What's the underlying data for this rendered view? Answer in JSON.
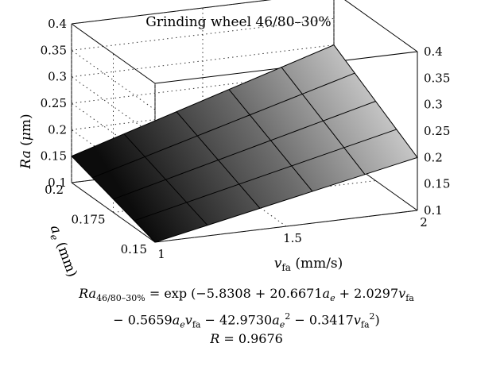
{
  "chart_data": {
    "type": "surface",
    "title": "Grinding wheel 46/80–30%",
    "x": {
      "label": "v fa (mm/s)",
      "range": [
        1,
        2
      ],
      "ticks": [
        "1",
        "1.5",
        "2"
      ]
    },
    "y": {
      "label": "ae (mm)",
      "range": [
        0.15,
        0.2
      ],
      "ticks": [
        "0.15",
        "0.175",
        "0.2"
      ]
    },
    "z": {
      "label": "Ra (μm)",
      "range": [
        0.1,
        0.4
      ],
      "ticks_left": [
        "0.1",
        "0.15",
        "0.2",
        "0.25",
        "0.3",
        "0.35",
        "0.4"
      ],
      "ticks_right": [
        "0.1",
        "0.15",
        "0.2",
        "0.25",
        "0.3",
        "0.35",
        "0.4"
      ]
    },
    "surface_corners": [
      {
        "vfa": 1,
        "ae": 0.15,
        "Ra": 0.1
      },
      {
        "vfa": 2,
        "ae": 0.15,
        "Ra": 0.2
      },
      {
        "vfa": 1,
        "ae": 0.2,
        "Ra": 0.15
      },
      {
        "vfa": 2,
        "ae": 0.2,
        "Ra": 0.3
      }
    ],
    "model": {
      "line1": "Ra46/80–30% = exp (−5.8308 + 20.6671ae + 2.0297vfa",
      "line2": "− 0.5659aevfa − 42.9730ae² − 0.3417vfa²)",
      "line3": "R = 0.9676"
    }
  }
}
